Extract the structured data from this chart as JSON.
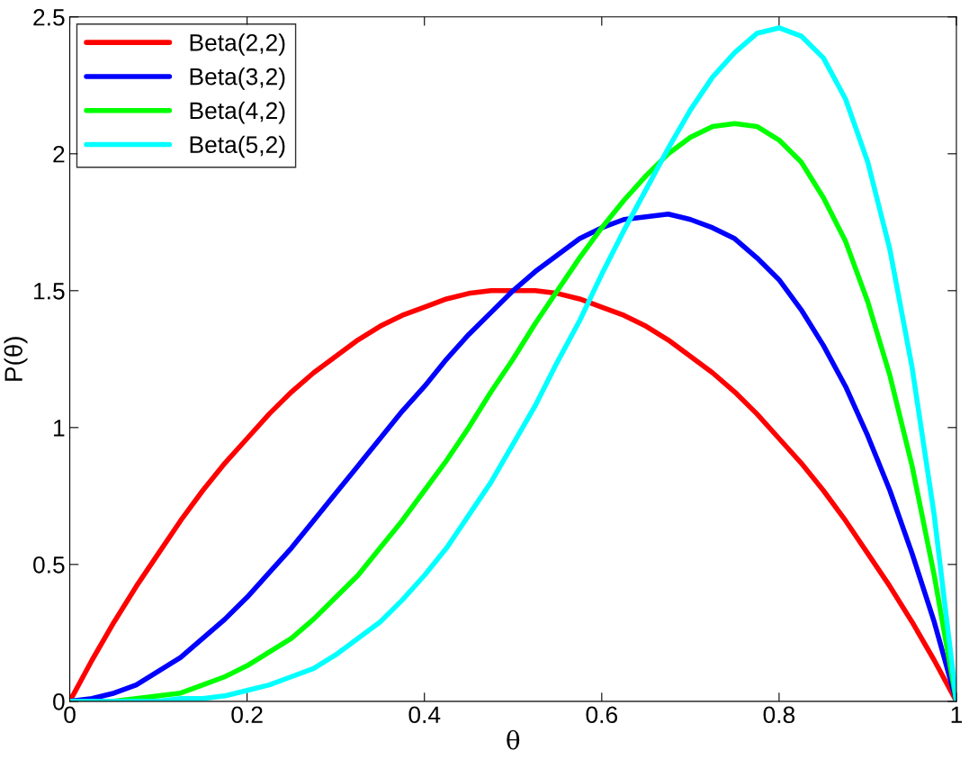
{
  "chart_data": {
    "type": "line",
    "xlabel": "θ",
    "ylabel": "P(θ)",
    "x": [
      0,
      0.025,
      0.05,
      0.075,
      0.1,
      0.125,
      0.15,
      0.175,
      0.2,
      0.225,
      0.25,
      0.275,
      0.3,
      0.325,
      0.35,
      0.375,
      0.4,
      0.425,
      0.45,
      0.475,
      0.5,
      0.525,
      0.55,
      0.575,
      0.6,
      0.625,
      0.65,
      0.675,
      0.7,
      0.725,
      0.75,
      0.775,
      0.8,
      0.825,
      0.85,
      0.875,
      0.9,
      0.925,
      0.95,
      0.975,
      1
    ],
    "series": [
      {
        "name": "Beta(2,2)",
        "color": "#ff0000",
        "values": [
          0,
          0.15,
          0.29,
          0.42,
          0.54,
          0.66,
          0.77,
          0.87,
          0.96,
          1.05,
          1.13,
          1.2,
          1.26,
          1.32,
          1.37,
          1.41,
          1.44,
          1.47,
          1.49,
          1.5,
          1.5,
          1.5,
          1.49,
          1.47,
          1.44,
          1.41,
          1.37,
          1.32,
          1.26,
          1.2,
          1.13,
          1.05,
          0.96,
          0.87,
          0.77,
          0.66,
          0.54,
          0.42,
          0.29,
          0.15,
          0
        ]
      },
      {
        "name": "Beta(3,2)",
        "color": "#0000ff",
        "values": [
          0,
          0.01,
          0.03,
          0.06,
          0.11,
          0.16,
          0.23,
          0.3,
          0.38,
          0.47,
          0.56,
          0.66,
          0.76,
          0.86,
          0.96,
          1.06,
          1.15,
          1.25,
          1.34,
          1.42,
          1.5,
          1.57,
          1.63,
          1.69,
          1.73,
          1.76,
          1.77,
          1.78,
          1.76,
          1.73,
          1.69,
          1.62,
          1.54,
          1.43,
          1.3,
          1.15,
          0.97,
          0.77,
          0.54,
          0.29,
          0
        ]
      },
      {
        "name": "Beta(4,2)",
        "color": "#00ff00",
        "values": [
          0,
          0,
          0,
          0.01,
          0.02,
          0.03,
          0.06,
          0.09,
          0.13,
          0.18,
          0.23,
          0.3,
          0.38,
          0.46,
          0.56,
          0.66,
          0.77,
          0.88,
          1,
          1.13,
          1.25,
          1.38,
          1.5,
          1.62,
          1.73,
          1.83,
          1.92,
          2,
          2.06,
          2.1,
          2.11,
          2.1,
          2.05,
          1.97,
          1.84,
          1.68,
          1.46,
          1.19,
          0.86,
          0.46,
          0
        ]
      },
      {
        "name": "Beta(5,2)",
        "color": "#00ffff",
        "values": [
          0,
          0,
          0,
          0,
          0,
          0.01,
          0.01,
          0.02,
          0.04,
          0.06,
          0.09,
          0.12,
          0.17,
          0.23,
          0.29,
          0.37,
          0.46,
          0.56,
          0.68,
          0.8,
          0.94,
          1.08,
          1.24,
          1.39,
          1.56,
          1.72,
          1.87,
          2.02,
          2.16,
          2.28,
          2.37,
          2.44,
          2.46,
          2.43,
          2.35,
          2.2,
          1.97,
          1.65,
          1.22,
          0.68,
          0
        ]
      }
    ],
    "xlim": [
      0,
      1
    ],
    "xticks": [
      0,
      0.2,
      0.4,
      0.6,
      0.8,
      1
    ],
    "ylim": [
      0,
      2.5
    ],
    "yticks": [
      0,
      0.5,
      1,
      1.5,
      2,
      2.5
    ],
    "legend": "top left",
    "grid": false
  }
}
